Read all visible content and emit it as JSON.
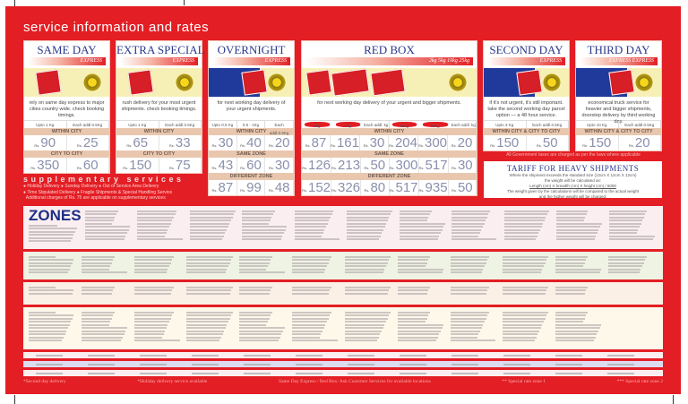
{
  "title": "service information and rates",
  "colors": {
    "brand_red": "#e31e24",
    "title_blue": "#2b3a8c",
    "band_tan": "#e9c7ae",
    "price": "#8b90ac"
  },
  "currency": "Rs.",
  "cards": [
    {
      "name": "SAME DAY",
      "sub": "EXPRESS",
      "img": "day",
      "desc": "rely on same day express to major cities country wide. check booking timings.",
      "weights": [
        "Upto 1 Kg",
        "Each addl.0.5Kg"
      ],
      "sections": [
        {
          "label": "WITHIN CITY",
          "values": [
            "90",
            "25"
          ]
        },
        {
          "label": "CITY TO CITY",
          "values": [
            "350",
            "60"
          ]
        }
      ]
    },
    {
      "name": "EXTRA SPECIAL",
      "sub": "EXPRESS",
      "img": "day",
      "desc": "rush delivery for your most urgent shipments. check booking timings.",
      "weights": [
        "Upto 1 Kg",
        "Each addl.0.5Kg"
      ],
      "sections": [
        {
          "label": "WITHIN CITY",
          "values": [
            "65",
            "33"
          ]
        },
        {
          "label": "CITY TO CITY",
          "values": [
            "150",
            "75"
          ]
        }
      ]
    },
    {
      "name": "OVERNIGHT",
      "sub": "EXPRESS",
      "img": "night",
      "desc": "for next working day delivery of your urgent shipments.",
      "weights": [
        "Upto 0.5 Kg",
        "0.5 - 1Kg",
        "Each addl.0.5Kg"
      ],
      "sections": [
        {
          "label": "WITHIN CITY",
          "values": [
            "30",
            "40",
            "20"
          ]
        },
        {
          "label": "SAME ZONE",
          "values": [
            "43",
            "60",
            "30"
          ]
        },
        {
          "label": "DIFFERENT ZONE",
          "values": [
            "87",
            "99",
            "48"
          ]
        }
      ]
    },
    {
      "name": "RED BOX",
      "sub": "2kg 5kg 10kg 25kg",
      "img": "redbox",
      "desc": "for next working day delivery of your urgent and bigger shipments.",
      "weights": [
        "2kg",
        "5kg",
        "Each addl. kg",
        "10kg",
        "25kg",
        "Each addl. kg"
      ],
      "sections": [
        {
          "label": "WITHIN CITY",
          "values": [
            "87",
            "161",
            "30",
            "204",
            "300",
            "20"
          ]
        },
        {
          "label": "SAME ZONE",
          "values": [
            "126",
            "213",
            "50",
            "300",
            "517",
            "30"
          ]
        },
        {
          "label": "DIFFERENT ZONE",
          "values": [
            "152",
            "326",
            "80",
            "517",
            "935",
            "50"
          ]
        }
      ]
    },
    {
      "name": "SECOND DAY",
      "sub": "EXPRESS",
      "img": "night",
      "desc": "if it's not urgent, it's still important. take the second working day parcel option — a 48 hour service.",
      "weights": [
        "Upto 3 Kg",
        "Each addl.0.5Kg"
      ],
      "sections": [
        {
          "label": "WITHIN CITY & CITY TO CITY",
          "values": [
            "150",
            "50"
          ]
        }
      ]
    },
    {
      "name": "THIRD DAY",
      "sub": "EXPRESS EXPRESS",
      "img": "night",
      "desc": "economical truck service for heavier and bigger shipments, doorstep delivery by third working day.",
      "weights": [
        "Upto 10 Kg",
        "Each addl.0.5Kg"
      ],
      "sections": [
        {
          "label": "WITHIN CITY & CITY TO CITY",
          "values": [
            "150",
            "20"
          ]
        }
      ]
    }
  ],
  "supplementary": {
    "heading": "supplementary services",
    "items": [
      "Holiday Delivery",
      "Sunday Delivery",
      "Out of Service Area Delivery",
      "Time Stipulated Delivery",
      "Fragile Shipments & Special Handling Service"
    ],
    "note": "Additional charges of Rs. 75 are applicable on supplementary services"
  },
  "govt_note": "All Government taxes are charged as per the laws where applicable",
  "tariff": {
    "title": "TARIFF FOR HEAVY SHIPMENTS",
    "line1": "Where the shipment exceeds the standard size (12cm X 12cm X 12cm)",
    "line2": "the weight will be calculated as:",
    "formula": "Length (cm) X breadth (cm) X height (cm) / 5000",
    "line3": "The weight given by the calculations will be compared to the actual weight",
    "line4": "and the higher weight will be charged."
  },
  "zones": {
    "title": "ZONES"
  },
  "footer": [
    "*Second day delivery",
    "*Holiday delivery service available",
    "Same Day Express / Red Box: Ask Customer Services for available locations",
    "** Special rate zone 1",
    "*** Special rate zone 2"
  ]
}
